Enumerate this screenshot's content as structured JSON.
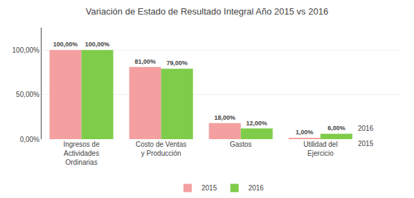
{
  "chart_data": {
    "type": "bar",
    "title": "Variación de Estado de Resultado Integral Año 2015 vs 2016",
    "categories": [
      "Ingresos de\nActividades\nOrdinarias",
      "Costo de Ventas\ny Producción",
      "Gastos",
      "Utilidad del\nEjercicio"
    ],
    "series": [
      {
        "name": "2015",
        "color": "#F4A0A0",
        "values": [
          100.0,
          81.0,
          18.0,
          1.0
        ],
        "value_labels": [
          "100,00%",
          "81,00%",
          "18,00%",
          "1,00%"
        ]
      },
      {
        "name": "2016",
        "color": "#7ECC4A",
        "values": [
          100.0,
          79.0,
          12.0,
          6.0
        ],
        "value_labels": [
          "100,00%",
          "79,00%",
          "12,00%",
          "6,00%"
        ]
      }
    ],
    "annotations": [
      {
        "text": "2016",
        "series": "2016"
      },
      {
        "text": "2015",
        "series": "2015"
      }
    ],
    "ylim": [
      0,
      125
    ],
    "yticks": [
      {
        "value": 0,
        "label": "0,00%"
      },
      {
        "value": 50,
        "label": "50,00%"
      },
      {
        "value": 100,
        "label": "100,00%"
      }
    ],
    "grid": true,
    "legend": "bottom",
    "data_labels": true
  }
}
